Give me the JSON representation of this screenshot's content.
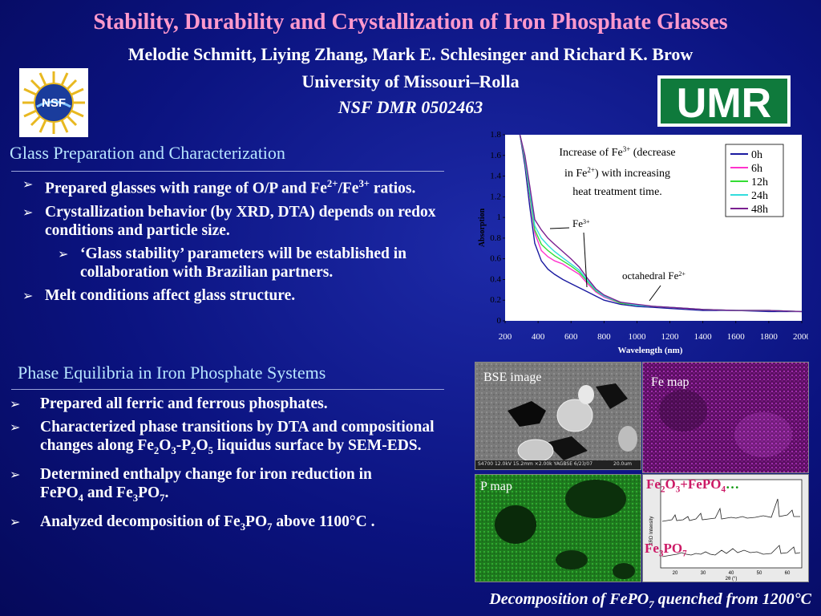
{
  "header": {
    "title": "Stability, Durability and Crystallization of Iron Phosphate Glasses",
    "authors": "Melodie Schmitt, Liying Zhang, Mark E. Schlesinger and Richard K. Brow",
    "university": "University of Missouri–Rolla",
    "grant": "NSF DMR 0502463",
    "nsf_logo_text": "NSF",
    "umr_logo_text": "UMR"
  },
  "section1": {
    "title": "Glass Preparation and Characterization",
    "b1_pre": "Prepared glasses with range of O/P and Fe",
    "b1_sup1": "2+",
    "b1_mid": "/Fe",
    "b1_sup2": "3+",
    "b1_post": " ratios.",
    "b2": "Crystallization behavior (by XRD, DTA) depends on redox conditions and particle size.",
    "b3": "‘Glass stability’ parameters will be established in collaboration with Brazilian partners.",
    "b4": "Melt conditions affect glass structure."
  },
  "section2": {
    "title": "Phase Equilibria in Iron Phosphate Systems",
    "b1": "Prepared all ferric and ferrous phosphates.",
    "b2_pre": "Characterized phase transitions by DTA and compositional changes along Fe",
    "b2_s1": "2",
    "b2_m1": "O",
    "b2_s2": "3",
    "b2_m2": "-P",
    "b2_s3": "2",
    "b2_m3": "O",
    "b2_s4": "5",
    "b2_post": " liquidus surface by SEM-EDS.",
    "b3_pre": "Determined enthalpy change for iron reduction  in FePO",
    "b3_s1": "4",
    "b3_mid": " and Fe",
    "b3_s2": "3",
    "b3_mid2": "PO",
    "b3_s3": "7",
    "b3_post": ".",
    "b4_pre": "Analyzed decomposition of Fe",
    "b4_s1": "3",
    "b4_mid": "PO",
    "b4_s2": "7",
    "b4_post": " above 1100°C ."
  },
  "chart_data": {
    "type": "line",
    "xlabel": "Wavelength (nm)",
    "ylabel": "Absorption",
    "xlim": [
      200,
      2000
    ],
    "ylim": [
      0,
      1.8
    ],
    "xticks": [
      "200",
      "400",
      "600",
      "800",
      "1000",
      "1200",
      "1400",
      "1600",
      "1800",
      "2000"
    ],
    "yticks": [
      "0",
      "0.2",
      "0.4",
      "0.6",
      "0.8",
      "1",
      "1.2",
      "1.4",
      "1.6",
      "1.8"
    ],
    "annotation_main_1": "Increase of Fe",
    "annotation_main_1_sup": "3+",
    "annotation_main_2": " (decrease",
    "annotation_main_3": "in Fe",
    "annotation_main_3_sup": "2+",
    "annotation_main_4": ") with increasing",
    "annotation_main_5": "heat treatment time.",
    "annotation_fe3": "Fe",
    "annotation_fe3_sup": "3+",
    "annotation_oct": "octahedral Fe",
    "annotation_oct_sup": "2+",
    "legend": "top-right",
    "series": [
      {
        "name": "0h",
        "color": "#1a1aa0",
        "x": [
          290,
          320,
          350,
          380,
          420,
          460,
          500,
          550,
          600,
          650,
          700,
          750,
          800,
          900,
          1000,
          1100,
          1200,
          1300,
          1400,
          1600,
          1800,
          2000
        ],
        "y": [
          1.8,
          1.5,
          1.1,
          0.75,
          0.58,
          0.5,
          0.45,
          0.4,
          0.36,
          0.32,
          0.28,
          0.24,
          0.2,
          0.16,
          0.14,
          0.13,
          0.12,
          0.11,
          0.1,
          0.1,
          0.09,
          0.09
        ]
      },
      {
        "name": "6h",
        "color": "#ff33cc",
        "x": [
          290,
          320,
          350,
          380,
          420,
          460,
          500,
          550,
          600,
          650,
          700,
          750,
          800,
          900,
          1000,
          1100,
          1200,
          1300,
          1400,
          1600,
          1800,
          2000
        ],
        "y": [
          1.8,
          1.55,
          1.2,
          0.85,
          0.68,
          0.62,
          0.58,
          0.55,
          0.5,
          0.45,
          0.36,
          0.28,
          0.23,
          0.17,
          0.15,
          0.14,
          0.13,
          0.12,
          0.11,
          0.1,
          0.1,
          0.09
        ]
      },
      {
        "name": "12h",
        "color": "#33dd33",
        "x": [
          290,
          320,
          350,
          380,
          420,
          460,
          500,
          550,
          600,
          650,
          700,
          750,
          800,
          900,
          1000,
          1100,
          1200,
          1300,
          1400,
          1600,
          1800,
          2000
        ],
        "y": [
          1.8,
          1.56,
          1.22,
          0.88,
          0.74,
          0.68,
          0.63,
          0.58,
          0.53,
          0.47,
          0.38,
          0.29,
          0.24,
          0.17,
          0.15,
          0.14,
          0.13,
          0.12,
          0.11,
          0.1,
          0.1,
          0.09
        ]
      },
      {
        "name": "24h",
        "color": "#33dddd",
        "x": [
          290,
          320,
          350,
          380,
          420,
          460,
          500,
          550,
          600,
          650,
          700,
          750,
          800,
          900,
          1000,
          1100,
          1200,
          1300,
          1400,
          1600,
          1800,
          2000
        ],
        "y": [
          1.8,
          1.58,
          1.25,
          0.92,
          0.8,
          0.73,
          0.67,
          0.61,
          0.55,
          0.49,
          0.39,
          0.3,
          0.24,
          0.18,
          0.15,
          0.14,
          0.13,
          0.12,
          0.11,
          0.1,
          0.1,
          0.09
        ]
      },
      {
        "name": "48h",
        "color": "#7a2090",
        "x": [
          290,
          320,
          350,
          380,
          420,
          460,
          500,
          550,
          600,
          650,
          700,
          750,
          800,
          900,
          1000,
          1100,
          1200,
          1300,
          1400,
          1600,
          1800,
          2000
        ],
        "y": [
          1.8,
          1.6,
          1.3,
          0.98,
          0.88,
          0.8,
          0.74,
          0.67,
          0.6,
          0.52,
          0.41,
          0.31,
          0.25,
          0.18,
          0.16,
          0.14,
          0.13,
          0.12,
          0.11,
          0.1,
          0.1,
          0.09
        ]
      }
    ]
  },
  "images": {
    "bse_label": "BSE image",
    "bse_footer": "S4700 12.0kV 15.2mm ×2.00k YAGBSE 6/23/07",
    "bse_scale": "20.0um",
    "fe_label": "Fe map",
    "p_label": "P map",
    "xrd_label_1_pre": "Fe",
    "xrd_label_1_s1": "2",
    "xrd_label_1_m1": "O",
    "xrd_label_1_s2": "3",
    "xrd_label_1_m2": "+FePO",
    "xrd_label_1_s3": "4",
    "xrd_label_1_dots": "…",
    "xrd_label_2_pre": "Fe",
    "xrd_label_2_s1": "3",
    "xrd_label_2_m1": "PO",
    "xrd_label_2_s2": "7",
    "xrd_ylabel": "XRD Intensity",
    "xrd_xlabel": "2θ (°)",
    "xrd_xticks": [
      "20",
      "30",
      "40",
      "50",
      "60"
    ]
  },
  "caption": {
    "pre": "Decomposition of FePO",
    "sub": "7",
    "post": " quenched from 1200°C"
  }
}
